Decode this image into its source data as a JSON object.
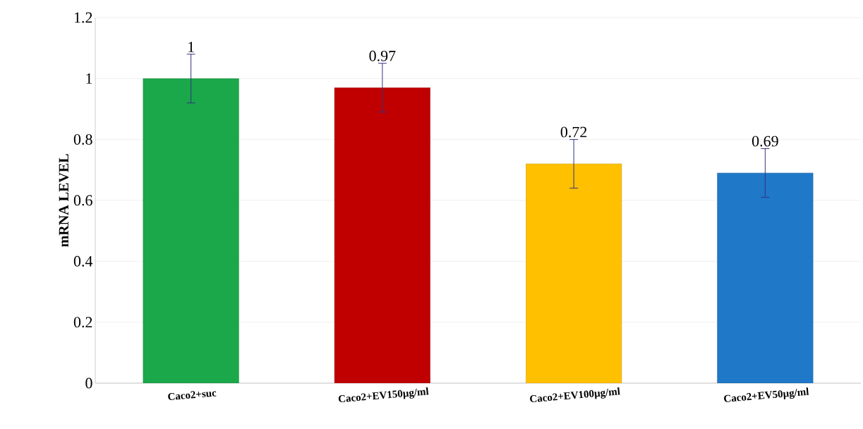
{
  "chart_data": {
    "type": "bar",
    "ylabel": "mRNA LEVEL",
    "categories": [
      "Caco2+suc",
      "Caco2+EV150µg/ml",
      "Caco2+EV100µg/ml",
      "Caco2+EV50µg/ml"
    ],
    "values": [
      1,
      0.97,
      0.72,
      0.69
    ],
    "errors": [
      0.08,
      0.08,
      0.08,
      0.08
    ],
    "colors": [
      "#1aa84a",
      "#c00000",
      "#ffc000",
      "#1f78c8"
    ],
    "ylim": [
      0,
      1.2
    ],
    "yticks": [
      0,
      0.2,
      0.4,
      0.6,
      0.8,
      1,
      1.2
    ],
    "grid": "y",
    "data_labels": true
  }
}
